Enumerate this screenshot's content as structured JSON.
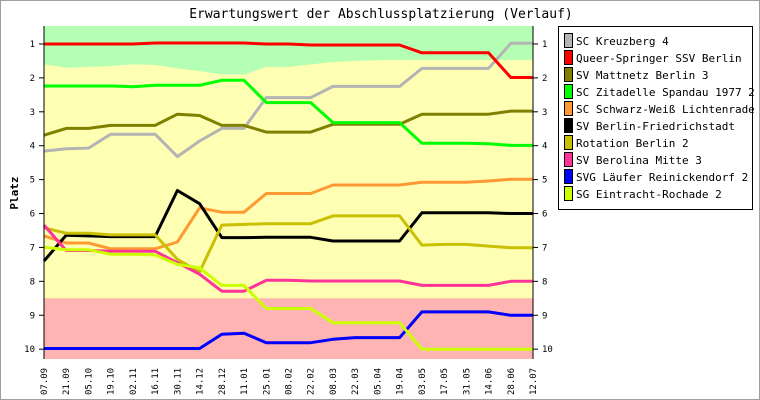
{
  "chart_data": {
    "type": "line",
    "title": "Erwartungswert der Abschlussplatzierung (Verlauf)",
    "xlabel": "",
    "ylabel": "Platz",
    "ylim": [
      0.47,
      10.29
    ],
    "y_inverted": true,
    "yticks": [
      1,
      2,
      3,
      4,
      5,
      6,
      7,
      8,
      9,
      10
    ],
    "grid": false,
    "legend_position": "right",
    "categories": [
      "07.09",
      "21.09",
      "05.10",
      "19.10",
      "02.11",
      "16.11",
      "30.11",
      "14.12",
      "28.12",
      "11.01",
      "25.01",
      "08.02",
      "22.02",
      "08.03",
      "22.03",
      "05.04",
      "19.04",
      "03.05",
      "17.05",
      "31.05",
      "14.06",
      "28.06",
      "12.07"
    ],
    "bands": [
      {
        "name": "promotion",
        "color": "#b4ffb4",
        "upper_boundary": [
          1.6,
          1.7,
          1.68,
          1.65,
          1.6,
          1.62,
          1.72,
          1.8,
          1.9,
          1.9,
          1.68,
          1.68,
          1.6,
          1.53,
          1.5,
          1.48,
          1.47,
          1.47,
          1.47,
          1.47,
          1.47,
          1.47,
          1.47
        ]
      },
      {
        "name": "midfield",
        "color": "#ffffb4"
      },
      {
        "name": "relegation",
        "color": "#ffb4b4",
        "from": 8.5
      }
    ],
    "series": [
      {
        "name": "SC Kreuzberg 4",
        "color": "#b4b4b4",
        "values": [
          4.16,
          4.09,
          4.07,
          3.66,
          3.66,
          3.66,
          4.32,
          3.86,
          3.49,
          3.49,
          2.58,
          2.58,
          2.58,
          2.25,
          2.25,
          2.25,
          2.25,
          1.72,
          1.72,
          1.72,
          1.72,
          0.98,
          0.98
        ]
      },
      {
        "name": "Queer-Springer SSV Berlin",
        "color": "#ff0000",
        "values": [
          1.0,
          1.0,
          1.0,
          1.0,
          1.0,
          0.97,
          0.97,
          0.97,
          0.97,
          0.97,
          1.0,
          1.0,
          1.03,
          1.03,
          1.03,
          1.03,
          1.03,
          1.26,
          1.26,
          1.26,
          1.26,
          1.99,
          1.99
        ]
      },
      {
        "name": "SV Mattnetz Berlin 3",
        "color": "#808000",
        "values": [
          3.69,
          3.49,
          3.49,
          3.4,
          3.4,
          3.4,
          3.07,
          3.11,
          3.4,
          3.4,
          3.6,
          3.6,
          3.6,
          3.37,
          3.37,
          3.37,
          3.37,
          3.07,
          3.07,
          3.07,
          3.07,
          2.98,
          2.98
        ]
      },
      {
        "name": "SC Zitadelle Spandau 1977 2",
        "color": "#00ff00",
        "values": [
          2.24,
          2.24,
          2.24,
          2.24,
          2.26,
          2.22,
          2.22,
          2.22,
          2.07,
          2.07,
          2.73,
          2.73,
          2.73,
          3.32,
          3.32,
          3.32,
          3.32,
          3.93,
          3.93,
          3.93,
          3.94,
          3.99,
          3.99
        ]
      },
      {
        "name": "SC Schwarz-Weiß Lichtenrade 2",
        "color": "#ff9933",
        "values": [
          6.66,
          6.87,
          6.87,
          7.04,
          7.04,
          7.04,
          6.84,
          5.83,
          5.96,
          5.96,
          5.41,
          5.41,
          5.41,
          5.16,
          5.16,
          5.16,
          5.16,
          5.08,
          5.08,
          5.08,
          5.04,
          4.99,
          4.99
        ]
      },
      {
        "name": "SV Berlin-Friedrichstadt",
        "color": "#000000",
        "values": [
          7.4,
          6.64,
          6.66,
          6.68,
          6.68,
          6.68,
          5.32,
          5.71,
          6.71,
          6.71,
          6.7,
          6.7,
          6.7,
          6.81,
          6.81,
          6.81,
          6.81,
          5.98,
          5.98,
          5.98,
          5.98,
          6.0,
          6.0
        ]
      },
      {
        "name": "Rotation Berlin 2",
        "color": "#c8c000",
        "values": [
          6.42,
          6.58,
          6.58,
          6.63,
          6.63,
          6.63,
          7.35,
          7.72,
          6.34,
          6.32,
          6.3,
          6.3,
          6.3,
          6.07,
          6.07,
          6.07,
          6.07,
          6.93,
          6.91,
          6.91,
          6.96,
          7.01,
          7.01
        ]
      },
      {
        "name": "SV Berolina Mitte 3",
        "color": "#ff3399",
        "values": [
          6.34,
          7.09,
          7.09,
          7.11,
          7.11,
          7.11,
          7.45,
          7.79,
          8.29,
          8.29,
          7.97,
          7.97,
          7.99,
          7.99,
          7.99,
          7.99,
          7.99,
          8.12,
          8.12,
          8.12,
          8.12,
          8.0,
          8.0
        ]
      },
      {
        "name": "SVG Läufer Reinickendorf 2",
        "color": "#0000ff",
        "values": [
          9.98,
          9.98,
          9.98,
          9.98,
          9.98,
          9.98,
          9.98,
          9.98,
          9.56,
          9.53,
          9.81,
          9.81,
          9.81,
          9.71,
          9.66,
          9.66,
          9.66,
          8.9,
          8.9,
          8.9,
          8.9,
          9.0,
          9.0
        ]
      },
      {
        "name": "SG Eintracht-Rochade 2",
        "color": "#ccff00",
        "values": [
          6.99,
          7.07,
          7.07,
          7.2,
          7.2,
          7.22,
          7.5,
          7.6,
          8.12,
          8.12,
          8.8,
          8.8,
          8.8,
          9.22,
          9.22,
          9.22,
          9.22,
          10.0,
          10.0,
          10.0,
          10.0,
          10.0,
          10.0
        ]
      }
    ]
  }
}
